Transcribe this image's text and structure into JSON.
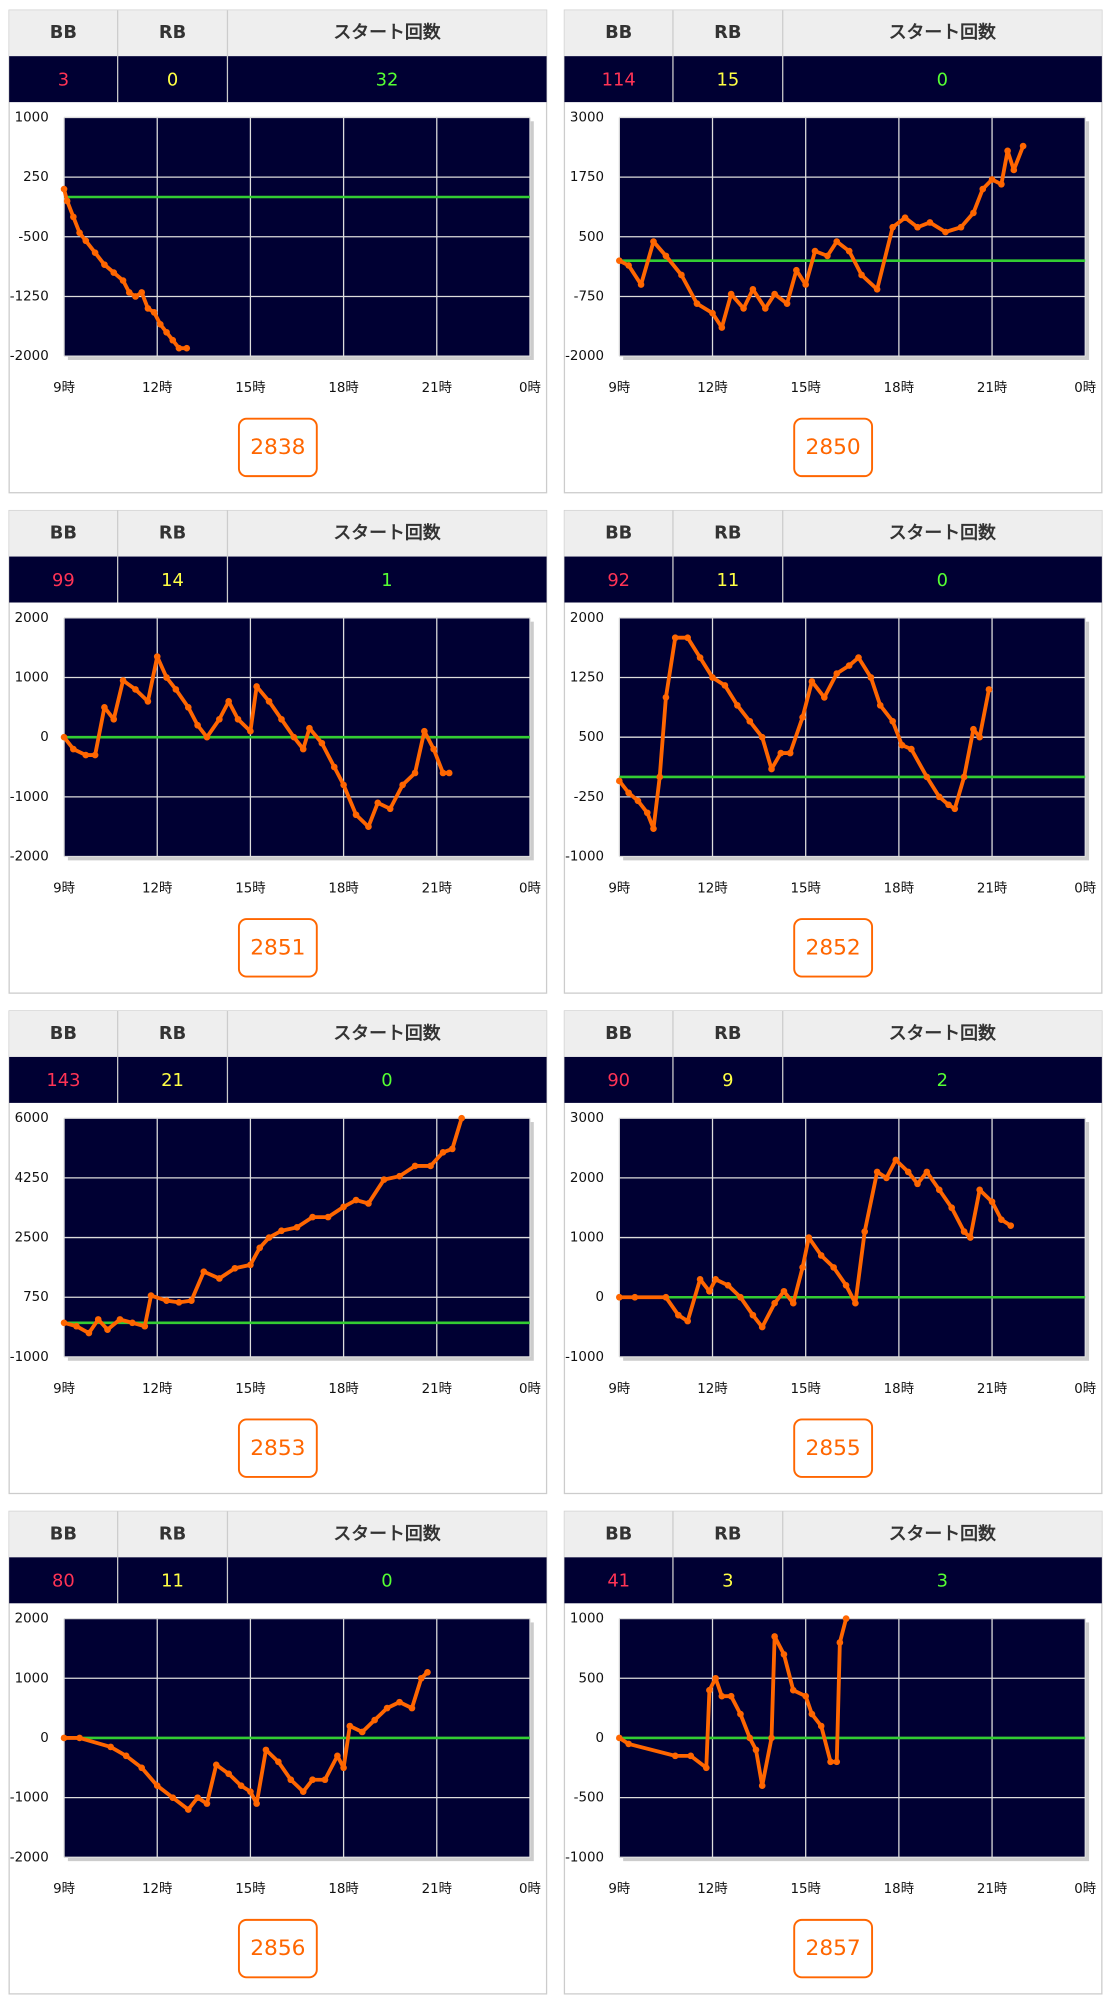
{
  "headers": [
    "BB",
    "RB",
    "スタート回数"
  ],
  "xlim": [
    9,
    24
  ],
  "xticks": [
    {
      "value": 9,
      "label": "9時"
    },
    {
      "value": 12,
      "label": "12時"
    },
    {
      "value": 15,
      "label": "15時"
    },
    {
      "value": 18,
      "label": "18時"
    },
    {
      "value": 21,
      "label": "21時"
    },
    {
      "value": 24,
      "label": "0時"
    }
  ],
  "panels": [
    {
      "bb": 3,
      "rb": 0,
      "starts": 32,
      "machine": "2838",
      "chart": {
        "type": "line",
        "color": "#ff6600",
        "ylim": [
          -2000,
          1000
        ],
        "yticks": [
          1000,
          250,
          -500,
          -1250,
          -2000
        ],
        "x": [
          9.0,
          9.1,
          9.3,
          9.5,
          9.7,
          10.0,
          10.3,
          10.6,
          10.9,
          11.1,
          11.3,
          11.5,
          11.7,
          11.9,
          12.1,
          12.3,
          12.5,
          12.7,
          12.95
        ],
        "values": [
          100,
          -50,
          -250,
          -450,
          -550,
          -700,
          -850,
          -950,
          -1050,
          -1200,
          -1250,
          -1200,
          -1400,
          -1450,
          -1600,
          -1700,
          -1800,
          -1900,
          -1900
        ]
      }
    },
    {
      "bb": 114,
      "rb": 15,
      "starts": 0,
      "machine": "2850",
      "chart": {
        "type": "line",
        "color": "#ff6600",
        "ylim": [
          -2000,
          3000
        ],
        "yticks": [
          3000,
          1750,
          500,
          -750,
          -2000
        ],
        "x": [
          9.0,
          9.3,
          9.7,
          10.1,
          10.5,
          11.0,
          11.5,
          12.0,
          12.3,
          12.6,
          13.0,
          13.3,
          13.7,
          14.0,
          14.4,
          14.7,
          15.0,
          15.3,
          15.7,
          16.0,
          16.4,
          16.8,
          17.3,
          17.8,
          18.2,
          18.6,
          19.0,
          19.5,
          20.0,
          20.4,
          20.7,
          21.0,
          21.3,
          21.5,
          21.7,
          22.0
        ],
        "values": [
          0,
          -100,
          -500,
          400,
          100,
          -300,
          -900,
          -1100,
          -1400,
          -700,
          -1000,
          -600,
          -1000,
          -700,
          -900,
          -200,
          -500,
          200,
          100,
          400,
          200,
          -300,
          -600,
          700,
          900,
          700,
          800,
          600,
          700,
          1000,
          1500,
          1700,
          1600,
          2300,
          1900,
          2400
        ]
      }
    },
    {
      "bb": 99,
      "rb": 14,
      "starts": 1,
      "machine": "2851",
      "chart": {
        "type": "line",
        "color": "#ff6600",
        "ylim": [
          -2000,
          2000
        ],
        "yticks": [
          2000,
          1000,
          0,
          -1000,
          -2000
        ],
        "x": [
          9.0,
          9.3,
          9.7,
          10.0,
          10.3,
          10.6,
          10.9,
          11.3,
          11.7,
          12.0,
          12.3,
          12.6,
          13.0,
          13.3,
          13.6,
          14.0,
          14.3,
          14.6,
          15.0,
          15.2,
          15.6,
          16.0,
          16.4,
          16.7,
          16.9,
          17.3,
          17.7,
          18.0,
          18.4,
          18.8,
          19.1,
          19.5,
          19.9,
          20.3,
          20.6,
          20.9,
          21.2,
          21.4
        ],
        "values": [
          0,
          -200,
          -300,
          -300,
          500,
          300,
          950,
          800,
          600,
          1350,
          1000,
          800,
          500,
          200,
          0,
          300,
          600,
          300,
          100,
          850,
          600,
          300,
          0,
          -200,
          150,
          -100,
          -500,
          -800,
          -1300,
          -1500,
          -1100,
          -1200,
          -800,
          -600,
          100,
          -200,
          -600,
          -600
        ]
      }
    },
    {
      "bb": 92,
      "rb": 11,
      "starts": 0,
      "machine": "2852",
      "chart": {
        "type": "line",
        "color": "#ff6600",
        "ylim": [
          -1000,
          2000
        ],
        "yticks": [
          2000,
          1250,
          500,
          -250,
          -1000
        ],
        "x": [
          9.0,
          9.3,
          9.6,
          9.9,
          10.1,
          10.3,
          10.5,
          10.8,
          11.2,
          11.6,
          12.0,
          12.4,
          12.8,
          13.2,
          13.6,
          13.9,
          14.2,
          14.5,
          14.9,
          15.2,
          15.6,
          16.0,
          16.4,
          16.7,
          17.1,
          17.4,
          17.8,
          18.1,
          18.4,
          18.9,
          19.3,
          19.6,
          19.8,
          20.1,
          20.4,
          20.6,
          20.9
        ],
        "values": [
          -50,
          -200,
          -300,
          -450,
          -650,
          0,
          1000,
          1750,
          1750,
          1500,
          1250,
          1150,
          900,
          700,
          500,
          100,
          300,
          300,
          750,
          1200,
          1000,
          1300,
          1400,
          1500,
          1250,
          900,
          700,
          400,
          350,
          0,
          -250,
          -350,
          -400,
          0,
          600,
          500,
          1100
        ]
      }
    },
    {
      "bb": 143,
      "rb": 21,
      "starts": 0,
      "machine": "2853",
      "chart": {
        "type": "line",
        "color": "#ff6600",
        "ylim": [
          -1000,
          6000
        ],
        "yticks": [
          6000,
          4250,
          2500,
          750,
          -1000
        ],
        "x": [
          9.0,
          9.4,
          9.8,
          10.1,
          10.4,
          10.8,
          11.2,
          11.6,
          11.8,
          12.3,
          12.7,
          13.1,
          13.5,
          14.0,
          14.5,
          15.0,
          15.3,
          15.6,
          16.0,
          16.5,
          17.0,
          17.5,
          18.0,
          18.4,
          18.8,
          19.3,
          19.8,
          20.3,
          20.8,
          21.2,
          21.5,
          21.8
        ],
        "values": [
          0,
          -100,
          -300,
          100,
          -200,
          100,
          0,
          -100,
          800,
          650,
          600,
          650,
          1500,
          1300,
          1600,
          1700,
          2200,
          2500,
          2700,
          2800,
          3100,
          3100,
          3400,
          3600,
          3500,
          4200,
          4300,
          4600,
          4600,
          5000,
          5100,
          6000
        ]
      }
    },
    {
      "bb": 90,
      "rb": 9,
      "starts": 2,
      "machine": "2855",
      "chart": {
        "type": "line",
        "color": "#ff6600",
        "ylim": [
          -1000,
          3000
        ],
        "yticks": [
          3000,
          2000,
          1000,
          0,
          -1000
        ],
        "x": [
          9.0,
          9.5,
          10.5,
          10.9,
          11.2,
          11.6,
          11.9,
          12.1,
          12.5,
          12.9,
          13.3,
          13.6,
          14.0,
          14.3,
          14.6,
          14.9,
          15.1,
          15.5,
          15.9,
          16.3,
          16.6,
          16.9,
          17.3,
          17.6,
          17.9,
          18.3,
          18.6,
          18.9,
          19.3,
          19.7,
          20.1,
          20.3,
          20.6,
          21.0,
          21.3,
          21.6
        ],
        "values": [
          0,
          0,
          0,
          -300,
          -400,
          300,
          100,
          300,
          200,
          0,
          -300,
          -500,
          -100,
          100,
          -100,
          500,
          1000,
          700,
          500,
          200,
          -100,
          1100,
          2100,
          2000,
          2300,
          2100,
          1900,
          2100,
          1800,
          1500,
          1100,
          1000,
          1800,
          1600,
          1300,
          1200
        ]
      }
    },
    {
      "bb": 80,
      "rb": 11,
      "starts": 0,
      "machine": "2856",
      "chart": {
        "type": "line",
        "color": "#ff6600",
        "ylim": [
          -2000,
          2000
        ],
        "yticks": [
          2000,
          1000,
          0,
          -1000,
          -2000
        ],
        "x": [
          9.0,
          9.5,
          10.5,
          11.0,
          11.5,
          12.0,
          12.5,
          13.0,
          13.3,
          13.6,
          13.9,
          14.3,
          14.7,
          15.0,
          15.2,
          15.5,
          15.9,
          16.3,
          16.7,
          17.0,
          17.4,
          17.8,
          18.0,
          18.2,
          18.6,
          19.0,
          19.4,
          19.8,
          20.2,
          20.5,
          20.7
        ],
        "values": [
          0,
          0,
          -150,
          -300,
          -500,
          -800,
          -1000,
          -1200,
          -1000,
          -1100,
          -450,
          -600,
          -800,
          -900,
          -1100,
          -200,
          -400,
          -700,
          -900,
          -700,
          -700,
          -300,
          -500,
          200,
          100,
          300,
          500,
          600,
          500,
          1000,
          1100
        ]
      }
    },
    {
      "bb": 41,
      "rb": 3,
      "starts": 3,
      "machine": "2857",
      "chart": {
        "type": "line",
        "color": "#ff6600",
        "ylim": [
          -1000,
          1000
        ],
        "yticks": [
          1000,
          500,
          0,
          -500,
          -1000
        ],
        "x": [
          9.0,
          9.3,
          10.8,
          11.3,
          11.8,
          11.9,
          12.1,
          12.3,
          12.6,
          12.9,
          13.2,
          13.4,
          13.6,
          13.9,
          14.0,
          14.3,
          14.6,
          15.0,
          15.2,
          15.5,
          15.8,
          16.0,
          16.1,
          16.3
        ],
        "values": [
          0,
          -50,
          -150,
          -150,
          -250,
          400,
          500,
          350,
          350,
          200,
          0,
          -100,
          -400,
          0,
          850,
          700,
          400,
          350,
          200,
          100,
          -200,
          -200,
          800,
          1000
        ]
      }
    }
  ]
}
